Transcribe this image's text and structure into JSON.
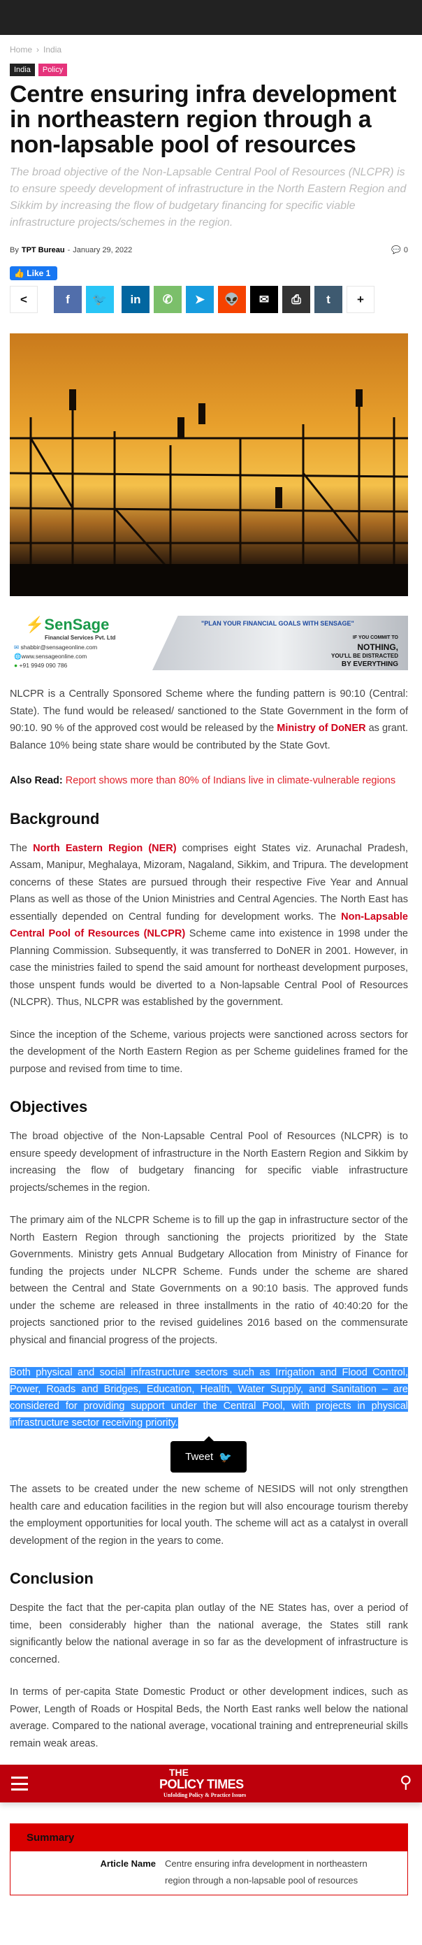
{
  "breadcrumb": [
    "Home",
    "India"
  ],
  "tags": [
    {
      "label": "India",
      "color": "#222222"
    },
    {
      "label": "Policy",
      "color": "#e5337b"
    }
  ],
  "title": "Centre ensuring infra development in northeastern region through a non-lapsable pool of resources",
  "subtitle": "The broad objective of the Non-Lapsable Central Pool of Resources (NLCPR) is to ensure speedy development of infrastructure in the North Eastern Region and Sikkim by increasing the flow of budgetary financing for specific viable infrastructure projects/schemes in the region.",
  "byline": {
    "by": "By",
    "author": "TPT Bureau",
    "sep": "-",
    "date": "January 29, 2022",
    "comments": "0"
  },
  "like": {
    "label": "Like 1"
  },
  "share": [
    {
      "icon": "share-icon",
      "glyph": "<",
      "color": "#ffffff"
    },
    {
      "icon": "facebook-icon",
      "glyph": "f",
      "color": "#516eab"
    },
    {
      "icon": "twitter-icon",
      "glyph": "🐦",
      "color": "#29c5f6"
    },
    {
      "icon": "linkedin-icon",
      "glyph": "in",
      "color": "#0266a0"
    },
    {
      "icon": "whatsapp-icon",
      "glyph": "✆",
      "color": "#7bbf6a"
    },
    {
      "icon": "telegram-icon",
      "glyph": "➤",
      "color": "#179cde"
    },
    {
      "icon": "reddit-icon",
      "glyph": "👽",
      "color": "#f54200"
    },
    {
      "icon": "mail-icon",
      "glyph": "✉",
      "color": "#000000"
    },
    {
      "icon": "print-icon",
      "glyph": "⎙",
      "color": "#333333"
    },
    {
      "icon": "tumblr-icon",
      "glyph": "t",
      "color": "#3e5a70"
    },
    {
      "icon": "plus-icon",
      "glyph": "+",
      "color": "#ffffff"
    }
  ],
  "ad": {
    "brand": "SenSage",
    "company": "Financial Services Pvt. Ltd",
    "email": "shabbir@sensageonline.com",
    "web": "www.sensageonline.com",
    "phone": "+91 9949 090 786",
    "tagline": "\"PLAN YOUR FINANCIAL GOALS WITH SENSAGE\"",
    "slogan1": "IF YOU COMMIT TO",
    "slogan2": "NOTHING,",
    "slogan3": "YOU'LL BE DISTRACTED",
    "slogan4": "BY EVERYTHING"
  },
  "p1": {
    "a": "NLCPR is a Centrally Sponsored Scheme where the funding pattern is 90:10 (Central: State). The fund would be released/ sanctioned to the State Government in the form of 90:10. 90 % of the approved cost would be released by the ",
    "link": "Ministry of DoNER",
    "b": " as grant. Balance 10% being state share would be contributed by the State Govt."
  },
  "also_read": {
    "label": "Also Read:",
    "link": "Report shows more than 80% of Indians live in climate-vulnerable regions"
  },
  "background": {
    "heading": "Background",
    "p1a": "The ",
    "p1link1": "North Eastern Region (NER)",
    "p1b": " comprises eight States viz. Arunachal Pradesh, Assam, Manipur, Meghalaya, Mizoram, Nagaland, Sikkim, and Tripura. The development concerns of these States are pursued through their respective Five Year and Annual Plans as well as those of the Union Ministries and Central Agencies. The North East has essentially depended on Central funding for development works. The ",
    "p1link2": "Non-Lapsable Central Pool of Resources (NLCPR)",
    "p1c": " Scheme came into existence in 1998 under the Planning Commission. Subsequently, it was transferred to DoNER in 2001. However, in case the ministries failed to spend the said amount for northeast development purposes, those unspent funds would be diverted to a Non-lapsable Central Pool of Resources (NLCPR). Thus, NLCPR was established by the government.",
    "p2": "Since the inception of the Scheme, various projects were sanctioned across sectors for the development of the North Eastern Region as per Scheme guidelines framed for the purpose and revised from time to time."
  },
  "objectives": {
    "heading": "Objectives",
    "p1": "The broad objective of the Non-Lapsable Central Pool of Resources (NLCPR) is to ensure speedy development of infrastructure in the North Eastern Region and Sikkim by increasing the flow of budgetary financing for specific viable infrastructure projects/schemes in the region.",
    "p2": "The primary aim of the NLCPR Scheme is to fill up the gap in infrastructure sector of the North Eastern Region through sanctioning the projects prioritized by the State Governments. Ministry gets Annual Budgetary Allocation from Ministry of Finance for funding the projects under NLCPR Scheme. Funds under the scheme are shared between the Central and State Governments on a 90:10 basis. The approved funds under the scheme are released in three installments in the ratio of 40:40:20 for the projects sanctioned prior to the revised guidelines 2016 based on the commensurate physical and financial progress of the projects.",
    "p3": "Both physical and social infrastructure sectors such as Irrigation and Flood Control, Power, Roads and Bridges, Education, Health, Water Supply, and Sanitation – are considered for providing support under the Central Pool, with projects in physical infrastructure sector receiving priority.",
    "p4": "The assets to be created under the new scheme of NESIDS will not only strengthen health care and education facilities in the region but will also encourage tourism thereby the employment opportunities for local youth. The scheme will act as a catalyst in overall development of the region in the years to come."
  },
  "tweet": {
    "label": "Tweet"
  },
  "conclusion": {
    "heading": "Conclusion",
    "p1": "Despite the fact that the per-capita plan outlay of the NE States has, over a period of time, been considerably higher than the national average, the States still rank significantly below the national average in so far as the development of infrastructure is concerned.",
    "p2": "In terms of per-capita State Domestic Product or other development indices, such as Power, Length of Roads or Hospital Beds, the North East ranks well below the national average. Compared to the national average, vocational training and entrepreneurial skills remain weak areas."
  },
  "navbar": {
    "logo_the": "THE",
    "logo_main": "POLICY TIMES",
    "logo_tag": "Unfolding Policy & Practice Issues"
  },
  "summary": {
    "heading": "Summary",
    "label": "Article Name",
    "value": "Centre ensuring infra development in northeastern region through a non-lapsable pool of resources"
  }
}
